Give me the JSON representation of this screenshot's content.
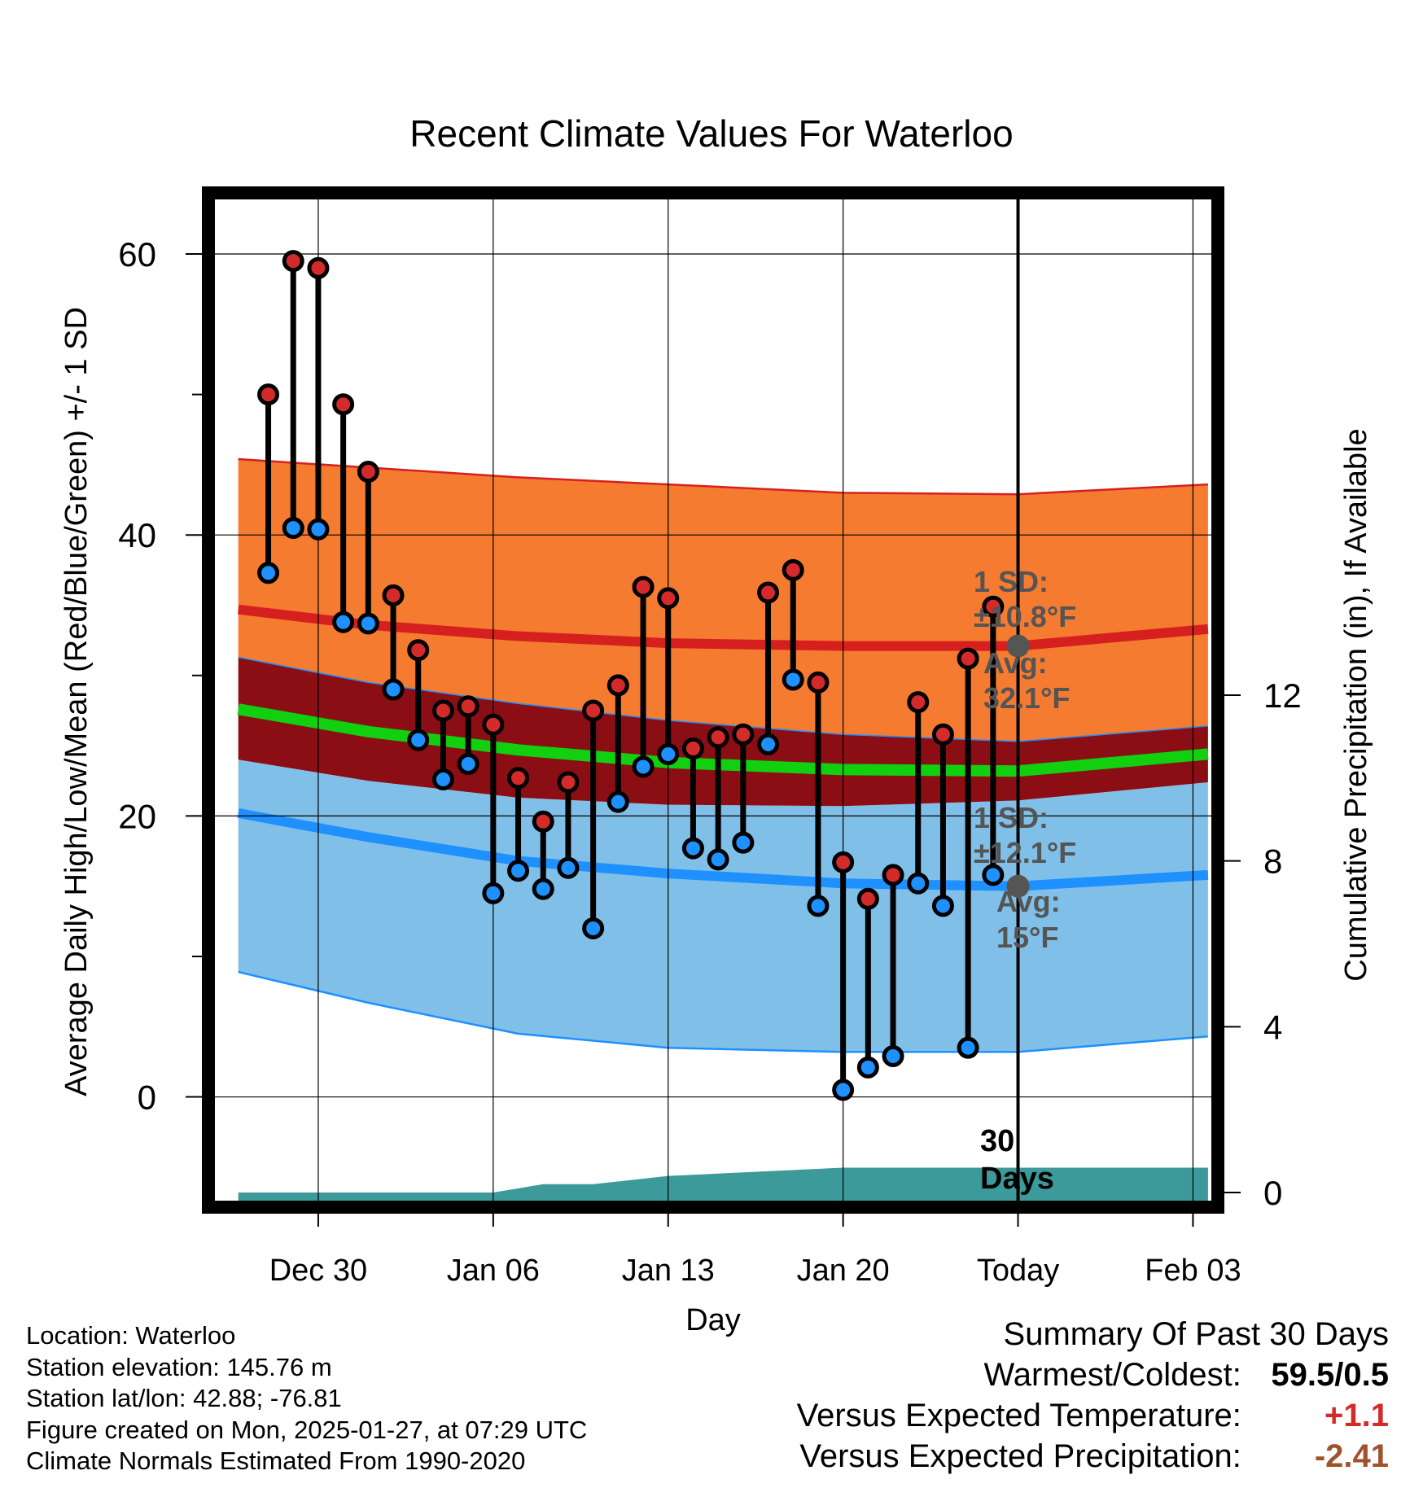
{
  "chart_data": {
    "type": "line",
    "title": "Recent Climate Values For Waterloo",
    "xlabel": "Day",
    "ylabel": "Average Daily High/Low/Mean (Red/Blue/Green) +/- 1 SD",
    "y2label": "Cumulative Precipitation (in), If Available",
    "x_range": [
      -4.2,
      35.8
    ],
    "ylim": [
      -7.5,
      64
    ],
    "y_ticks": [
      0,
      20,
      40,
      60
    ],
    "y_minor_ticks": [
      10,
      30,
      50
    ],
    "y2_range": [
      0,
      24
    ],
    "y2_ticks": [
      0,
      4,
      8,
      12
    ],
    "x_ticks": [
      {
        "day": 0,
        "label": "Dec 30"
      },
      {
        "day": 7,
        "label": "Jan 06"
      },
      {
        "day": 14,
        "label": "Jan 13"
      },
      {
        "day": 21,
        "label": "Jan 20"
      },
      {
        "day": 28,
        "label": "Today"
      },
      {
        "day": 35,
        "label": "Feb 03"
      }
    ],
    "today_day": 28,
    "today_label": [
      "30",
      "Days"
    ],
    "observations": {
      "days": [
        -2,
        -1,
        0,
        1,
        2,
        3,
        4,
        5,
        6,
        7,
        8,
        9,
        10,
        11,
        12,
        13,
        14,
        15,
        16,
        17,
        18,
        19,
        20,
        21,
        22,
        23,
        24,
        25,
        26,
        27
      ],
      "highs": [
        50.0,
        59.5,
        59.0,
        49.3,
        44.5,
        35.7,
        31.8,
        27.5,
        27.8,
        26.5,
        22.7,
        19.6,
        22.4,
        27.5,
        29.3,
        36.3,
        35.5,
        24.8,
        25.6,
        25.8,
        35.9,
        37.5,
        29.5,
        16.7,
        14.1,
        15.8,
        28.1,
        25.8,
        31.2,
        34.9
      ],
      "lows": [
        37.3,
        40.5,
        40.4,
        33.8,
        33.7,
        29.0,
        25.4,
        22.6,
        23.7,
        14.5,
        16.1,
        14.8,
        16.3,
        12.0,
        21.0,
        23.5,
        24.4,
        17.7,
        16.9,
        18.1,
        25.1,
        29.7,
        13.6,
        0.5,
        2.1,
        2.9,
        15.2,
        13.6,
        3.5,
        15.8
      ]
    },
    "normals": {
      "days": [
        -3.2,
        2,
        8,
        14,
        21,
        28,
        35.6
      ],
      "high_mean": [
        34.7,
        33.6,
        32.8,
        32.3,
        32.1,
        32.1,
        33.3
      ],
      "high_upper": [
        45.4,
        44.8,
        44.1,
        43.6,
        43.0,
        42.9,
        43.6
      ],
      "high_lower": [
        31.3,
        29.5,
        28.0,
        26.8,
        25.8,
        25.3,
        26.4
      ],
      "mean": [
        27.6,
        26.0,
        24.7,
        23.8,
        23.3,
        23.2,
        24.4
      ],
      "low_mean": [
        20.2,
        18.5,
        16.8,
        15.9,
        15.2,
        15.0,
        15.8
      ],
      "low_upper": [
        24.0,
        22.5,
        21.3,
        20.8,
        20.7,
        21.1,
        22.4
      ],
      "low_lower": [
        8.9,
        6.7,
        4.5,
        3.5,
        3.2,
        3.2,
        4.3
      ]
    },
    "precip": {
      "days": [
        -3.2,
        7,
        9,
        11,
        14,
        21,
        28,
        35.6
      ],
      "cumulative": [
        0.0,
        0.0,
        0.2,
        0.2,
        0.4,
        0.6,
        0.6,
        0.6
      ]
    },
    "annotations": {
      "high_sd": "1 SD:",
      "high_sd_value": "±10.8°F",
      "high_avg": "Avg:",
      "high_avg_value": "32.1°F",
      "low_sd": "1 SD:",
      "low_sd_value": "±12.1°F",
      "low_avg": "Avg:",
      "low_avg_value": "15°F"
    },
    "colors": {
      "high_band": "#f47b30",
      "high_band_line": "#d62020",
      "mean_band": "#8b0e14",
      "mean_line": "#10d010",
      "low_band": "#80c0e8",
      "low_line": "#1e90ff",
      "precip_fill": "#3d9a9a",
      "high_dot": "#d42a2a",
      "low_dot": "#1e90ff",
      "annotation_text": "#555555"
    }
  },
  "info": {
    "location": "Location: Waterloo",
    "elevation": "Station elevation: 145.76 m",
    "latlon": "Station lat/lon: 42.88; -76.81",
    "created": "Figure created on Mon, 2025-01-27, at 07:29 UTC",
    "normals": "Climate Normals Estimated From 1990-2020"
  },
  "summary": {
    "title": "Summary Of Past 30 Days",
    "warm_label": "Warmest/Coldest:",
    "warm_value": "59.5/0.5",
    "temp_label": "Versus Expected Temperature:",
    "temp_value": "+1.1",
    "temp_color": "#d42a2a",
    "precip_label": "Versus Expected Precipitation:",
    "precip_value": "-2.41",
    "precip_color": "#a0522d"
  }
}
